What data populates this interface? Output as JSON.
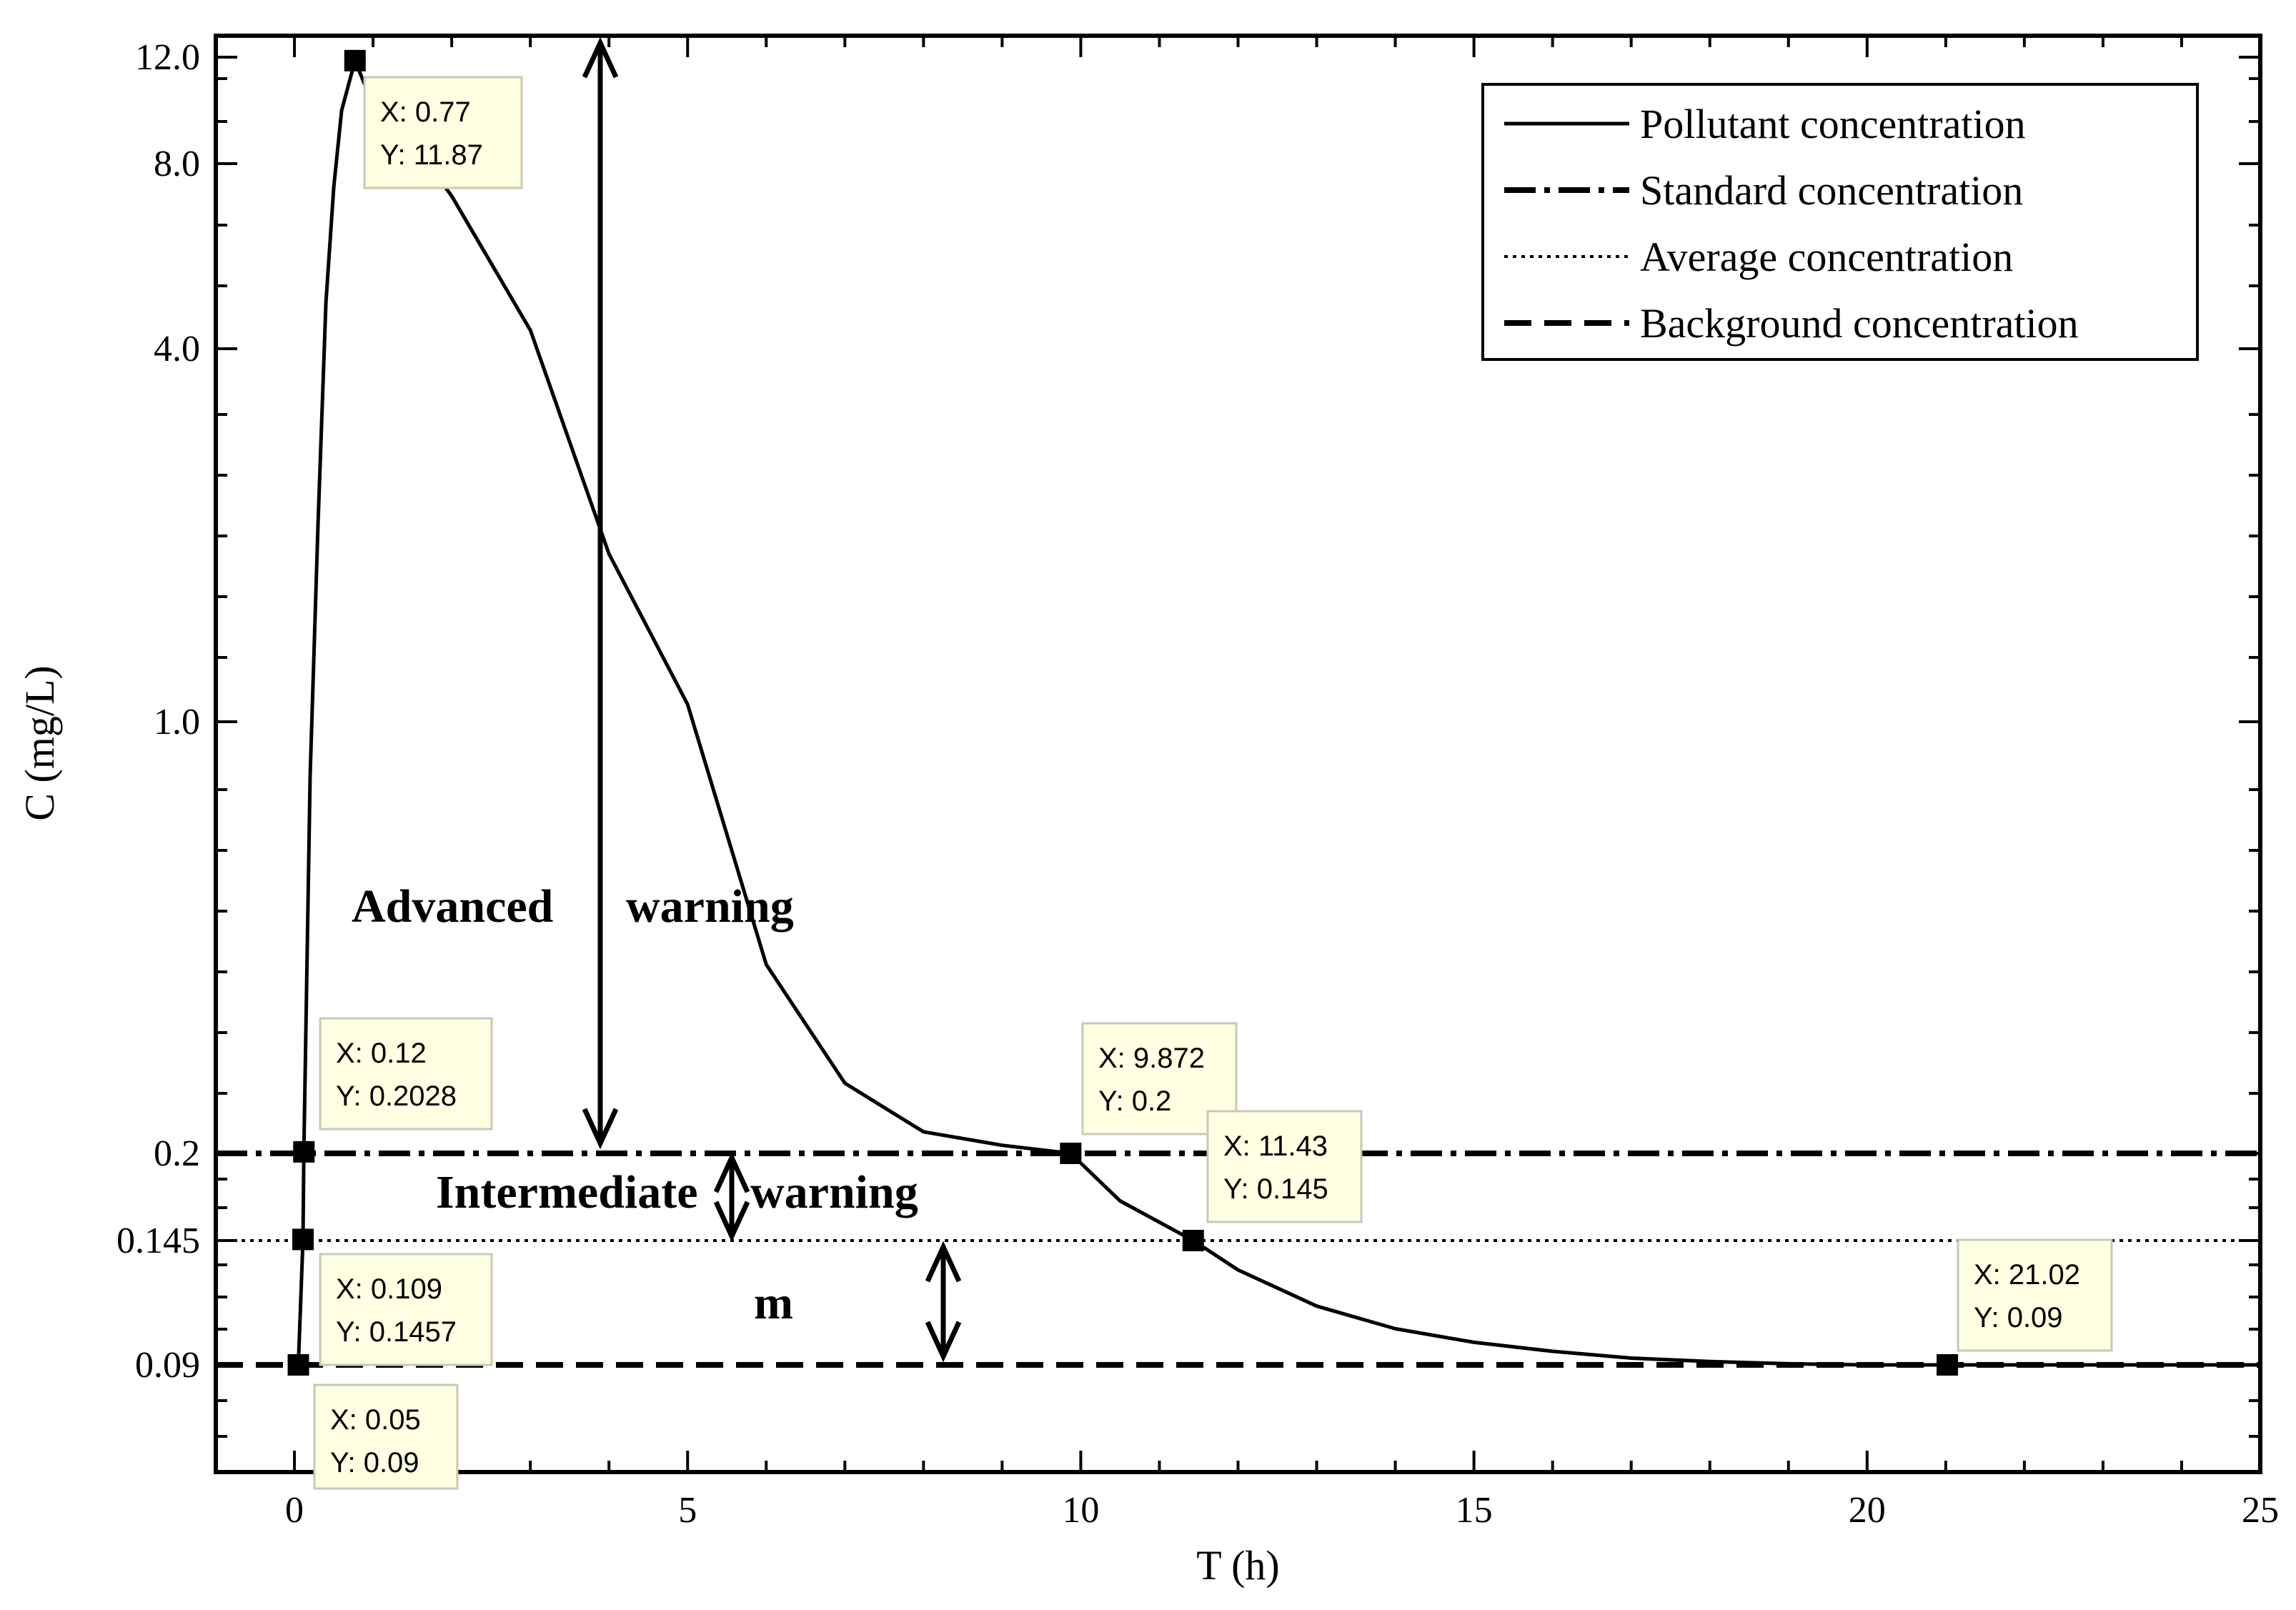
{
  "chart_data": {
    "type": "line",
    "xlabel": "T (h)",
    "ylabel": "C (mg/L)",
    "xlim": [
      -1,
      25
    ],
    "x_ticks": [
      0,
      5,
      10,
      15,
      20,
      25
    ],
    "x_tick_labels": [
      "0",
      "5",
      "10",
      "15",
      "20",
      "25"
    ],
    "y_scale": "custom-nonlinear",
    "y_ticks": [
      0.09,
      0.145,
      0.2,
      1.0,
      4.0,
      8.0,
      12.0
    ],
    "y_tick_labels": [
      "0.09",
      "0.145",
      "0.2",
      "1.0",
      "4.0",
      "8.0",
      "12.0"
    ],
    "grid": false,
    "legend_position": "top-right",
    "series": [
      {
        "name": "Pollutant concentration",
        "style": "solid",
        "x": [
          0.05,
          0.109,
          0.12,
          0.2,
          0.3,
          0.4,
          0.5,
          0.6,
          0.77,
          1,
          1.5,
          2,
          3,
          4,
          5,
          6,
          7,
          8,
          9,
          9.872,
          10.5,
          11.43,
          12,
          13,
          14,
          15,
          16,
          17,
          18,
          19,
          20,
          21.02,
          22,
          23,
          24,
          25
        ],
        "y": [
          0.09,
          0.1457,
          0.2028,
          0.9,
          2.6,
          5.0,
          7.5,
          10.0,
          11.87,
          10.2,
          8.8,
          7.3,
          4.4,
          2.35,
          1.14,
          0.55,
          0.33,
          0.24,
          0.215,
          0.2,
          0.17,
          0.145,
          0.132,
          0.116,
          0.106,
          0.1,
          0.096,
          0.093,
          0.0915,
          0.0905,
          0.09,
          0.09,
          0.09,
          0.09,
          0.09,
          0.09
        ]
      },
      {
        "name": "Standard concentration",
        "style": "dash-dot",
        "value": 0.2
      },
      {
        "name": "Average concentration",
        "style": "dotted",
        "value": 0.145
      },
      {
        "name": "Background concentration",
        "style": "dashed",
        "value": 0.09
      }
    ],
    "datatips": [
      {
        "x": 0.77,
        "y": 11.87,
        "text_x": "X: 0.77",
        "text_y": "Y: 11.87"
      },
      {
        "x": 0.12,
        "y": 0.2028,
        "text_x": "X: 0.12",
        "text_y": "Y: 0.2028"
      },
      {
        "x": 0.109,
        "y": 0.1457,
        "text_x": "X: 0.109",
        "text_y": "Y: 0.1457"
      },
      {
        "x": 0.05,
        "y": 0.09,
        "text_x": "X: 0.05",
        "text_y": "Y: 0.09"
      },
      {
        "x": 9.872,
        "y": 0.2,
        "text_x": "X: 9.872",
        "text_y": "Y: 0.2"
      },
      {
        "x": 11.43,
        "y": 0.145,
        "text_x": "X: 11.43",
        "text_y": "Y: 0.145"
      },
      {
        "x": 21.02,
        "y": 0.09,
        "text_x": "X: 21.02",
        "text_y": "Y: 0.09"
      }
    ],
    "annotations": [
      {
        "text": "Advanced",
        "x": 3.5,
        "y": 0.55,
        "arrow": {
          "x": 3.9,
          "y1": 12.0,
          "y2": 0.2
        }
      },
      {
        "text": "warning",
        "x": 5.4,
        "y": 0.55
      },
      {
        "text": "Intermediate",
        "x": 3.5,
        "y": 0.175,
        "arrow": {
          "x": 5.55,
          "y1": 0.2,
          "y2": 0.145
        }
      },
      {
        "text": "warning",
        "x": 7.1,
        "y": 0.175
      },
      {
        "text": "m",
        "x": 6.25,
        "y": 0.115,
        "arrow": {
          "x": 8.3,
          "y1": 0.145,
          "y2": 0.09
        }
      }
    ]
  }
}
